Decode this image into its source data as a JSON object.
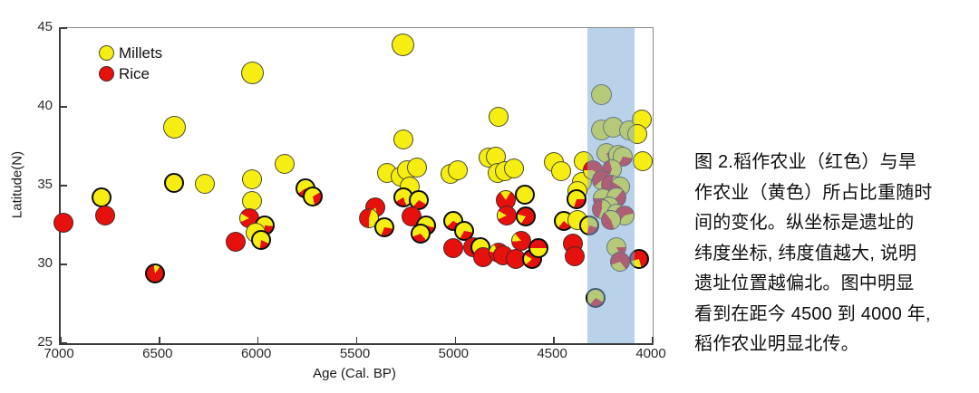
{
  "colors": {
    "millet_yellow": "#f6ee12",
    "rice_red": "#e6100c",
    "band_blue": "rgba(123,167,215,0.52)",
    "axis": "#3c3c3c"
  },
  "legend": {
    "items": [
      {
        "label": "Millets",
        "color": "#f6ee12"
      },
      {
        "label": "Rice",
        "color": "#e6100c"
      }
    ]
  },
  "caption": {
    "lines": [
      "图 2.稻作农业（红色）与旱",
      "作农业（黄色）所占比重随时",
      "间的变化。纵坐标是遗址的",
      "纬度坐标, 纬度值越大, 说明",
      "遗址位置越偏北。图中明显",
      "看到在距今 4500 到 4000 年,",
      "稻作农业明显北传。"
    ]
  },
  "chart_data": {
    "type": "scatter",
    "subtype": "pie-markers",
    "title": "",
    "xlabel": "Age (Cal. BP)",
    "ylabel": "Latitude(N)",
    "x_axis_reversed": true,
    "xlim": [
      7000,
      4000
    ],
    "ylim": [
      25,
      45
    ],
    "x_ticks": [
      "7000",
      "6500",
      "6000",
      "5500",
      "5000",
      "4500",
      "4000"
    ],
    "x_tick_values": [
      7000,
      6500,
      6000,
      5500,
      5000,
      4500,
      4000
    ],
    "y_ticks": [
      "45",
      "40",
      "35",
      "30",
      "25"
    ],
    "y_tick_values": [
      45,
      40,
      35,
      30,
      25
    ],
    "grid": false,
    "legend_position": "upper-left-inside",
    "highlight_band": {
      "age_start": 4330,
      "age_end": 4090,
      "color": "rgba(123,167,215,0.52)"
    },
    "point_schema": [
      "age_cal_bp",
      "latitude_n",
      "rice_fraction",
      "diameter_px",
      "bold_edge",
      "pie_start_angle_deg"
    ],
    "points": [
      [
        6985,
        32.65,
        1,
        22,
        0,
        0
      ],
      [
        6795,
        34.25,
        0,
        22,
        1,
        0
      ],
      [
        6775,
        33.1,
        1,
        22,
        0,
        0
      ],
      [
        6520,
        29.4,
        0.88,
        22,
        1,
        35
      ],
      [
        6425,
        38.7,
        0,
        25,
        0,
        0
      ],
      [
        6425,
        35.15,
        0,
        22,
        1,
        0
      ],
      [
        6270,
        35.1,
        0,
        22,
        0,
        0
      ],
      [
        6115,
        31.45,
        1,
        22,
        0,
        0
      ],
      [
        6030,
        42.15,
        0,
        25,
        0,
        0
      ],
      [
        6030,
        35.4,
        0,
        22,
        0,
        0
      ],
      [
        6030,
        34.0,
        0,
        22,
        0,
        0
      ],
      [
        6045,
        32.95,
        0.85,
        22,
        0,
        300
      ],
      [
        5965,
        32.5,
        0.25,
        22,
        1,
        95
      ],
      [
        6010,
        32.0,
        0,
        22,
        0,
        0
      ],
      [
        5985,
        31.55,
        0.2,
        22,
        1,
        115
      ],
      [
        5865,
        36.4,
        0,
        22,
        0,
        0
      ],
      [
        5760,
        34.85,
        0.22,
        22,
        1,
        155
      ],
      [
        5723,
        34.3,
        0.3,
        22,
        1,
        60
      ],
      [
        5265,
        43.95,
        0,
        25,
        0,
        0
      ],
      [
        5265,
        37.95,
        0,
        22,
        0,
        0
      ],
      [
        5346,
        35.8,
        0,
        22,
        0,
        0
      ],
      [
        5277,
        35.55,
        0,
        22,
        0,
        0
      ],
      [
        5245,
        35.95,
        0,
        22,
        0,
        0
      ],
      [
        5195,
        36.15,
        0,
        22,
        0,
        0
      ],
      [
        5231,
        34.95,
        0,
        22,
        0,
        0
      ],
      [
        5025,
        35.75,
        0,
        22,
        0,
        0
      ],
      [
        4988,
        35.95,
        0,
        22,
        0,
        0
      ],
      [
        5405,
        33.6,
        0.85,
        22,
        0,
        220
      ],
      [
        5440,
        32.95,
        0.55,
        22,
        0,
        180
      ],
      [
        5360,
        32.35,
        0.28,
        22,
        1,
        100
      ],
      [
        5263,
        34.25,
        0.22,
        22,
        1,
        160
      ],
      [
        5185,
        34.1,
        0.28,
        22,
        1,
        120
      ],
      [
        5222,
        33.05,
        1,
        22,
        0,
        0
      ],
      [
        5150,
        32.5,
        0.3,
        22,
        1,
        105
      ],
      [
        5176,
        31.95,
        0.3,
        22,
        1,
        140
      ],
      [
        5010,
        32.75,
        0.3,
        22,
        1,
        120
      ],
      [
        4955,
        32.15,
        0.3,
        22,
        1,
        100
      ],
      [
        5010,
        31.05,
        1,
        22,
        0,
        0
      ],
      [
        4910,
        31.1,
        1,
        22,
        0,
        0
      ],
      [
        4873,
        31.1,
        0.25,
        22,
        1,
        120
      ],
      [
        4860,
        30.45,
        1,
        22,
        0,
        0
      ],
      [
        4780,
        30.75,
        0.85,
        22,
        0,
        330
      ],
      [
        4757,
        30.6,
        1,
        22,
        0,
        0
      ],
      [
        4694,
        30.35,
        1,
        22,
        0,
        0
      ],
      [
        4666,
        31.5,
        0.85,
        22,
        0,
        320
      ],
      [
        4611,
        30.35,
        0.8,
        22,
        1,
        300
      ],
      [
        4579,
        31.05,
        0.5,
        22,
        1,
        270
      ],
      [
        4404,
        31.35,
        1,
        22,
        0,
        0
      ],
      [
        4395,
        30.5,
        1,
        22,
        0,
        0
      ],
      [
        4069,
        30.35,
        0.75,
        22,
        1,
        255
      ],
      [
        4832,
        36.8,
        0,
        22,
        0,
        0
      ],
      [
        4795,
        36.85,
        0,
        22,
        0,
        0
      ],
      [
        4786,
        35.8,
        0,
        22,
        0,
        0
      ],
      [
        4749,
        35.9,
        0,
        22,
        0,
        0
      ],
      [
        4703,
        36.1,
        0,
        22,
        0,
        0
      ],
      [
        4782,
        39.35,
        0,
        22,
        0,
        0
      ],
      [
        4647,
        34.45,
        0,
        22,
        1,
        0
      ],
      [
        4745,
        34.1,
        0.82,
        22,
        0,
        30
      ],
      [
        4740,
        33.1,
        0.85,
        22,
        0,
        300
      ],
      [
        4645,
        33.05,
        0.8,
        22,
        1,
        285
      ],
      [
        4501,
        36.5,
        0,
        22,
        0,
        0
      ],
      [
        4464,
        35.9,
        0,
        22,
        0,
        0
      ],
      [
        4349,
        36.55,
        0,
        22,
        0,
        0
      ],
      [
        4358,
        35.25,
        0,
        22,
        0,
        0
      ],
      [
        4381,
        34.65,
        0,
        22,
        0,
        0
      ],
      [
        4386,
        34.15,
        0.3,
        22,
        1,
        90
      ],
      [
        4451,
        32.75,
        0.25,
        22,
        1,
        130
      ],
      [
        4382,
        32.8,
        0,
        22,
        0,
        0
      ],
      [
        4322,
        32.5,
        0.25,
        22,
        1,
        105
      ],
      [
        4258,
        40.8,
        0,
        23,
        0,
        0
      ],
      [
        4258,
        38.55,
        0,
        23,
        0,
        0
      ],
      [
        4198,
        38.7,
        0,
        23,
        0,
        0
      ],
      [
        4120,
        38.5,
        0,
        22,
        0,
        0
      ],
      [
        4235,
        37.05,
        0.2,
        22,
        0,
        90
      ],
      [
        4175,
        36.95,
        0.25,
        22,
        0,
        60
      ],
      [
        4152,
        36.85,
        0.3,
        22,
        0,
        100
      ],
      [
        4304,
        36.0,
        0.6,
        22,
        0,
        270
      ],
      [
        4207,
        36.05,
        0.4,
        22,
        0,
        200
      ],
      [
        4258,
        35.35,
        0.5,
        22,
        0,
        230
      ],
      [
        4212,
        35.05,
        0.55,
        22,
        0,
        180
      ],
      [
        4166,
        34.95,
        0.45,
        22,
        0,
        140
      ],
      [
        4253,
        34.2,
        0.5,
        22,
        0,
        90
      ],
      [
        4184,
        34.25,
        0.55,
        22,
        0,
        40
      ],
      [
        4221,
        33.7,
        0.5,
        22,
        0,
        150
      ],
      [
        4258,
        33.5,
        0.45,
        22,
        0,
        200
      ],
      [
        4184,
        33.2,
        0.55,
        22,
        0,
        100
      ],
      [
        4143,
        33.1,
        0.6,
        22,
        0,
        220
      ],
      [
        4212,
        32.8,
        0.45,
        22,
        0,
        160
      ],
      [
        4184,
        31.1,
        0.18,
        22,
        0,
        90
      ],
      [
        4166,
        30.2,
        0.7,
        22,
        0,
        250
      ],
      [
        4290,
        27.85,
        0.28,
        22,
        1,
        120
      ],
      [
        4055,
        39.2,
        0,
        22,
        0,
        0
      ],
      [
        4078,
        38.3,
        0,
        22,
        0,
        0
      ],
      [
        4050,
        36.55,
        0,
        22,
        0,
        0
      ]
    ]
  }
}
